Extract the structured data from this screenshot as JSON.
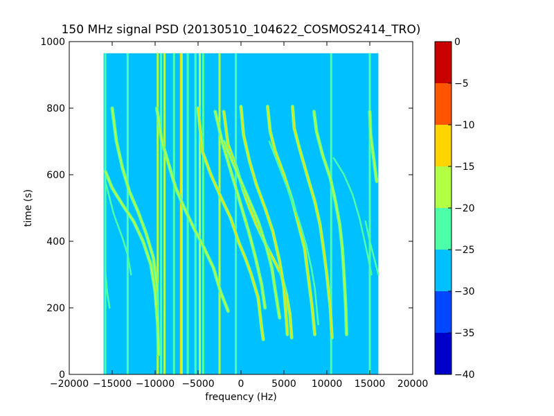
{
  "chart_data": {
    "type": "heatmap",
    "title": "150 MHz signal PSD (20130510_104622_COSMOS2414_TRO)",
    "xlabel": "frequency (Hz)",
    "ylabel": "time (s)",
    "xlim": [
      -20000,
      20000
    ],
    "ylim": [
      0,
      1000
    ],
    "xticks": [
      -20000,
      -15000,
      -10000,
      -5000,
      0,
      5000,
      10000,
      15000,
      20000
    ],
    "xtick_labels": [
      "−20000",
      "−15000",
      "−10000",
      "−5000",
      "0",
      "5000",
      "10000",
      "15000",
      "20000"
    ],
    "yticks": [
      0,
      200,
      400,
      600,
      800,
      1000
    ],
    "ytick_labels": [
      "0",
      "200",
      "400",
      "600",
      "800",
      "1000"
    ],
    "data_extent": {
      "x": [
        -16000,
        16000
      ],
      "y": [
        0,
        965
      ]
    },
    "background_level": -27.5,
    "colorbar": {
      "range": [
        -40,
        0
      ],
      "ticks": [
        0,
        -5,
        -10,
        -15,
        -20,
        -25,
        -30,
        -35,
        -40
      ],
      "tick_labels": [
        "0",
        "−5",
        "−10",
        "−15",
        "−20",
        "−25",
        "−30",
        "−35",
        "−40"
      ],
      "levels": [
        {
          "min": -40,
          "max": -35,
          "color": "#0000c8"
        },
        {
          "min": -35,
          "max": -30,
          "color": "#0047ff"
        },
        {
          "min": -30,
          "max": -25,
          "color": "#00c0ff"
        },
        {
          "min": -25,
          "max": -20,
          "color": "#4dffa8"
        },
        {
          "min": -20,
          "max": -15,
          "color": "#b2ff46"
        },
        {
          "min": -15,
          "max": -10,
          "color": "#ffd500"
        },
        {
          "min": -10,
          "max": -5,
          "color": "#ff5500"
        },
        {
          "min": -5,
          "max": 0,
          "color": "#c80000"
        }
      ]
    },
    "vertical_lines": [
      {
        "x": -15800,
        "y": [
          0,
          965
        ],
        "level": -22.5
      },
      {
        "x": -13200,
        "y": [
          0,
          965
        ],
        "level": -22.5
      },
      {
        "x": -9700,
        "y": [
          0,
          965
        ],
        "level": -17.5
      },
      {
        "x": -9300,
        "y": [
          0,
          965
        ],
        "level": -22.5
      },
      {
        "x": -8900,
        "y": [
          0,
          965
        ],
        "level": -17.5
      },
      {
        "x": -7800,
        "y": [
          0,
          965
        ],
        "level": -22.5
      },
      {
        "x": -7000,
        "y": [
          0,
          965
        ],
        "level": -12.5
      },
      {
        "x": -6900,
        "y": [
          0,
          965
        ],
        "level": -17.5
      },
      {
        "x": -6200,
        "y": [
          0,
          965
        ],
        "level": -22.5
      },
      {
        "x": -5300,
        "y": [
          0,
          965
        ],
        "level": -22.5
      },
      {
        "x": -4800,
        "y": [
          0,
          965
        ],
        "level": -17.5
      },
      {
        "x": -4400,
        "y": [
          0,
          965
        ],
        "level": -22.5
      },
      {
        "x": -2500,
        "y": [
          0,
          965
        ],
        "level": -17.5
      },
      {
        "x": -600,
        "y": [
          0,
          965
        ],
        "level": -22.5
      },
      {
        "x": 10500,
        "y": [
          0,
          965
        ],
        "level": -22.5
      },
      {
        "x": 15000,
        "y": [
          0,
          965
        ],
        "level": -22.5
      }
    ],
    "traces": [
      {
        "level": -12.5,
        "points": [
          [
            -5000,
            800
          ],
          [
            -4500,
            670
          ],
          [
            -3500,
            600
          ],
          [
            -2300,
            530
          ],
          [
            -1200,
            470
          ],
          [
            -300,
            400
          ],
          [
            500,
            350
          ],
          [
            1200,
            300
          ],
          [
            2000,
            230
          ],
          [
            2400,
            140
          ],
          [
            2600,
            105
          ]
        ]
      },
      {
        "level": -12.5,
        "points": [
          [
            -2000,
            790
          ],
          [
            -1500,
            690
          ],
          [
            -500,
            620
          ],
          [
            300,
            550
          ],
          [
            1000,
            500
          ],
          [
            1800,
            450
          ],
          [
            2700,
            400
          ],
          [
            3700,
            350
          ],
          [
            4700,
            300
          ],
          [
            5300,
            240
          ],
          [
            5700,
            180
          ],
          [
            5900,
            110
          ]
        ]
      },
      {
        "level": -12.5,
        "points": [
          [
            0,
            805
          ],
          [
            300,
            720
          ],
          [
            1000,
            640
          ],
          [
            1800,
            570
          ],
          [
            2800,
            500
          ],
          [
            3700,
            430
          ],
          [
            4500,
            340
          ],
          [
            5000,
            260
          ],
          [
            5300,
            160
          ],
          [
            5400,
            120
          ]
        ]
      },
      {
        "level": -12.5,
        "points": [
          [
            3100,
            805
          ],
          [
            3400,
            730
          ],
          [
            4000,
            670
          ],
          [
            5000,
            600
          ],
          [
            6000,
            520
          ],
          [
            6700,
            450
          ],
          [
            7400,
            380
          ],
          [
            7800,
            300
          ],
          [
            8300,
            200
          ],
          [
            8600,
            120
          ]
        ]
      },
      {
        "level": -12.5,
        "points": [
          [
            6000,
            805
          ],
          [
            6200,
            740
          ],
          [
            6800,
            680
          ],
          [
            7800,
            590
          ],
          [
            8600,
            520
          ],
          [
            9200,
            450
          ],
          [
            9600,
            380
          ],
          [
            10000,
            300
          ],
          [
            10400,
            200
          ],
          [
            10600,
            110
          ]
        ]
      },
      {
        "level": -17.5,
        "points": [
          [
            -15000,
            800
          ],
          [
            -14500,
            700
          ],
          [
            -13800,
            620
          ],
          [
            -13000,
            550
          ],
          [
            -12000,
            490
          ],
          [
            -11000,
            420
          ],
          [
            -10200,
            350
          ],
          [
            -9800,
            270
          ],
          [
            -9700,
            150
          ]
        ]
      },
      {
        "level": -17.5,
        "points": [
          [
            -15800,
            610
          ],
          [
            -15000,
            560
          ],
          [
            -13800,
            510
          ],
          [
            -12500,
            460
          ],
          [
            -11400,
            400
          ],
          [
            -10500,
            330
          ],
          [
            -10000,
            250
          ],
          [
            -9700,
            150
          ],
          [
            -9600,
            60
          ]
        ]
      },
      {
        "level": -22.5,
        "points": [
          [
            -15800,
            580
          ],
          [
            -14800,
            480
          ],
          [
            -13800,
            410
          ],
          [
            -13200,
            360
          ],
          [
            -12800,
            300
          ]
        ]
      },
      {
        "level": -17.5,
        "points": [
          [
            -9800,
            800
          ],
          [
            -9200,
            700
          ],
          [
            -8400,
            630
          ],
          [
            -7600,
            560
          ],
          [
            -6600,
            500
          ],
          [
            -5500,
            440
          ],
          [
            -4300,
            380
          ],
          [
            -3200,
            320
          ],
          [
            -2400,
            250
          ],
          [
            -1500,
            190
          ]
        ]
      },
      {
        "level": -17.5,
        "points": [
          [
            -2000,
            700
          ],
          [
            -1000,
            640
          ],
          [
            0,
            580
          ],
          [
            1000,
            520
          ],
          [
            2000,
            460
          ],
          [
            3000,
            380
          ],
          [
            3600,
            320
          ],
          [
            4000,
            250
          ],
          [
            4500,
            170
          ]
        ]
      },
      {
        "level": -17.5,
        "points": [
          [
            -3000,
            790
          ],
          [
            -2200,
            700
          ],
          [
            -1400,
            630
          ],
          [
            -600,
            560
          ],
          [
            200,
            490
          ],
          [
            1000,
            420
          ],
          [
            1700,
            350
          ],
          [
            2400,
            270
          ],
          [
            2800,
            200
          ]
        ]
      },
      {
        "level": -22.5,
        "points": [
          [
            3300,
            700
          ],
          [
            4500,
            620
          ],
          [
            5700,
            540
          ],
          [
            6800,
            460
          ],
          [
            7600,
            390
          ],
          [
            8200,
            320
          ],
          [
            8600,
            260
          ],
          [
            9000,
            150
          ]
        ]
      },
      {
        "level": -17.5,
        "points": [
          [
            8500,
            790
          ],
          [
            8800,
            730
          ],
          [
            9500,
            660
          ],
          [
            10400,
            590
          ],
          [
            11000,
            520
          ],
          [
            11500,
            450
          ],
          [
            11800,
            380
          ],
          [
            12000,
            300
          ],
          [
            12200,
            200
          ],
          [
            12300,
            120
          ]
        ]
      },
      {
        "level": -22.5,
        "points": [
          [
            10800,
            650
          ],
          [
            12000,
            600
          ],
          [
            13000,
            540
          ],
          [
            13800,
            470
          ],
          [
            14400,
            400
          ],
          [
            14900,
            340
          ],
          [
            15200,
            300
          ]
        ]
      },
      {
        "level": -17.5,
        "points": [
          [
            15000,
            790
          ],
          [
            15100,
            720
          ],
          [
            15500,
            640
          ],
          [
            15800,
            580
          ]
        ]
      },
      {
        "level": -22.5,
        "points": [
          [
            14500,
            460
          ],
          [
            15000,
            400
          ],
          [
            15500,
            350
          ],
          [
            16000,
            300
          ]
        ]
      },
      {
        "level": -22.5,
        "points": [
          [
            -15800,
            310
          ],
          [
            -15600,
            250
          ],
          [
            -15300,
            200
          ]
        ]
      }
    ]
  }
}
